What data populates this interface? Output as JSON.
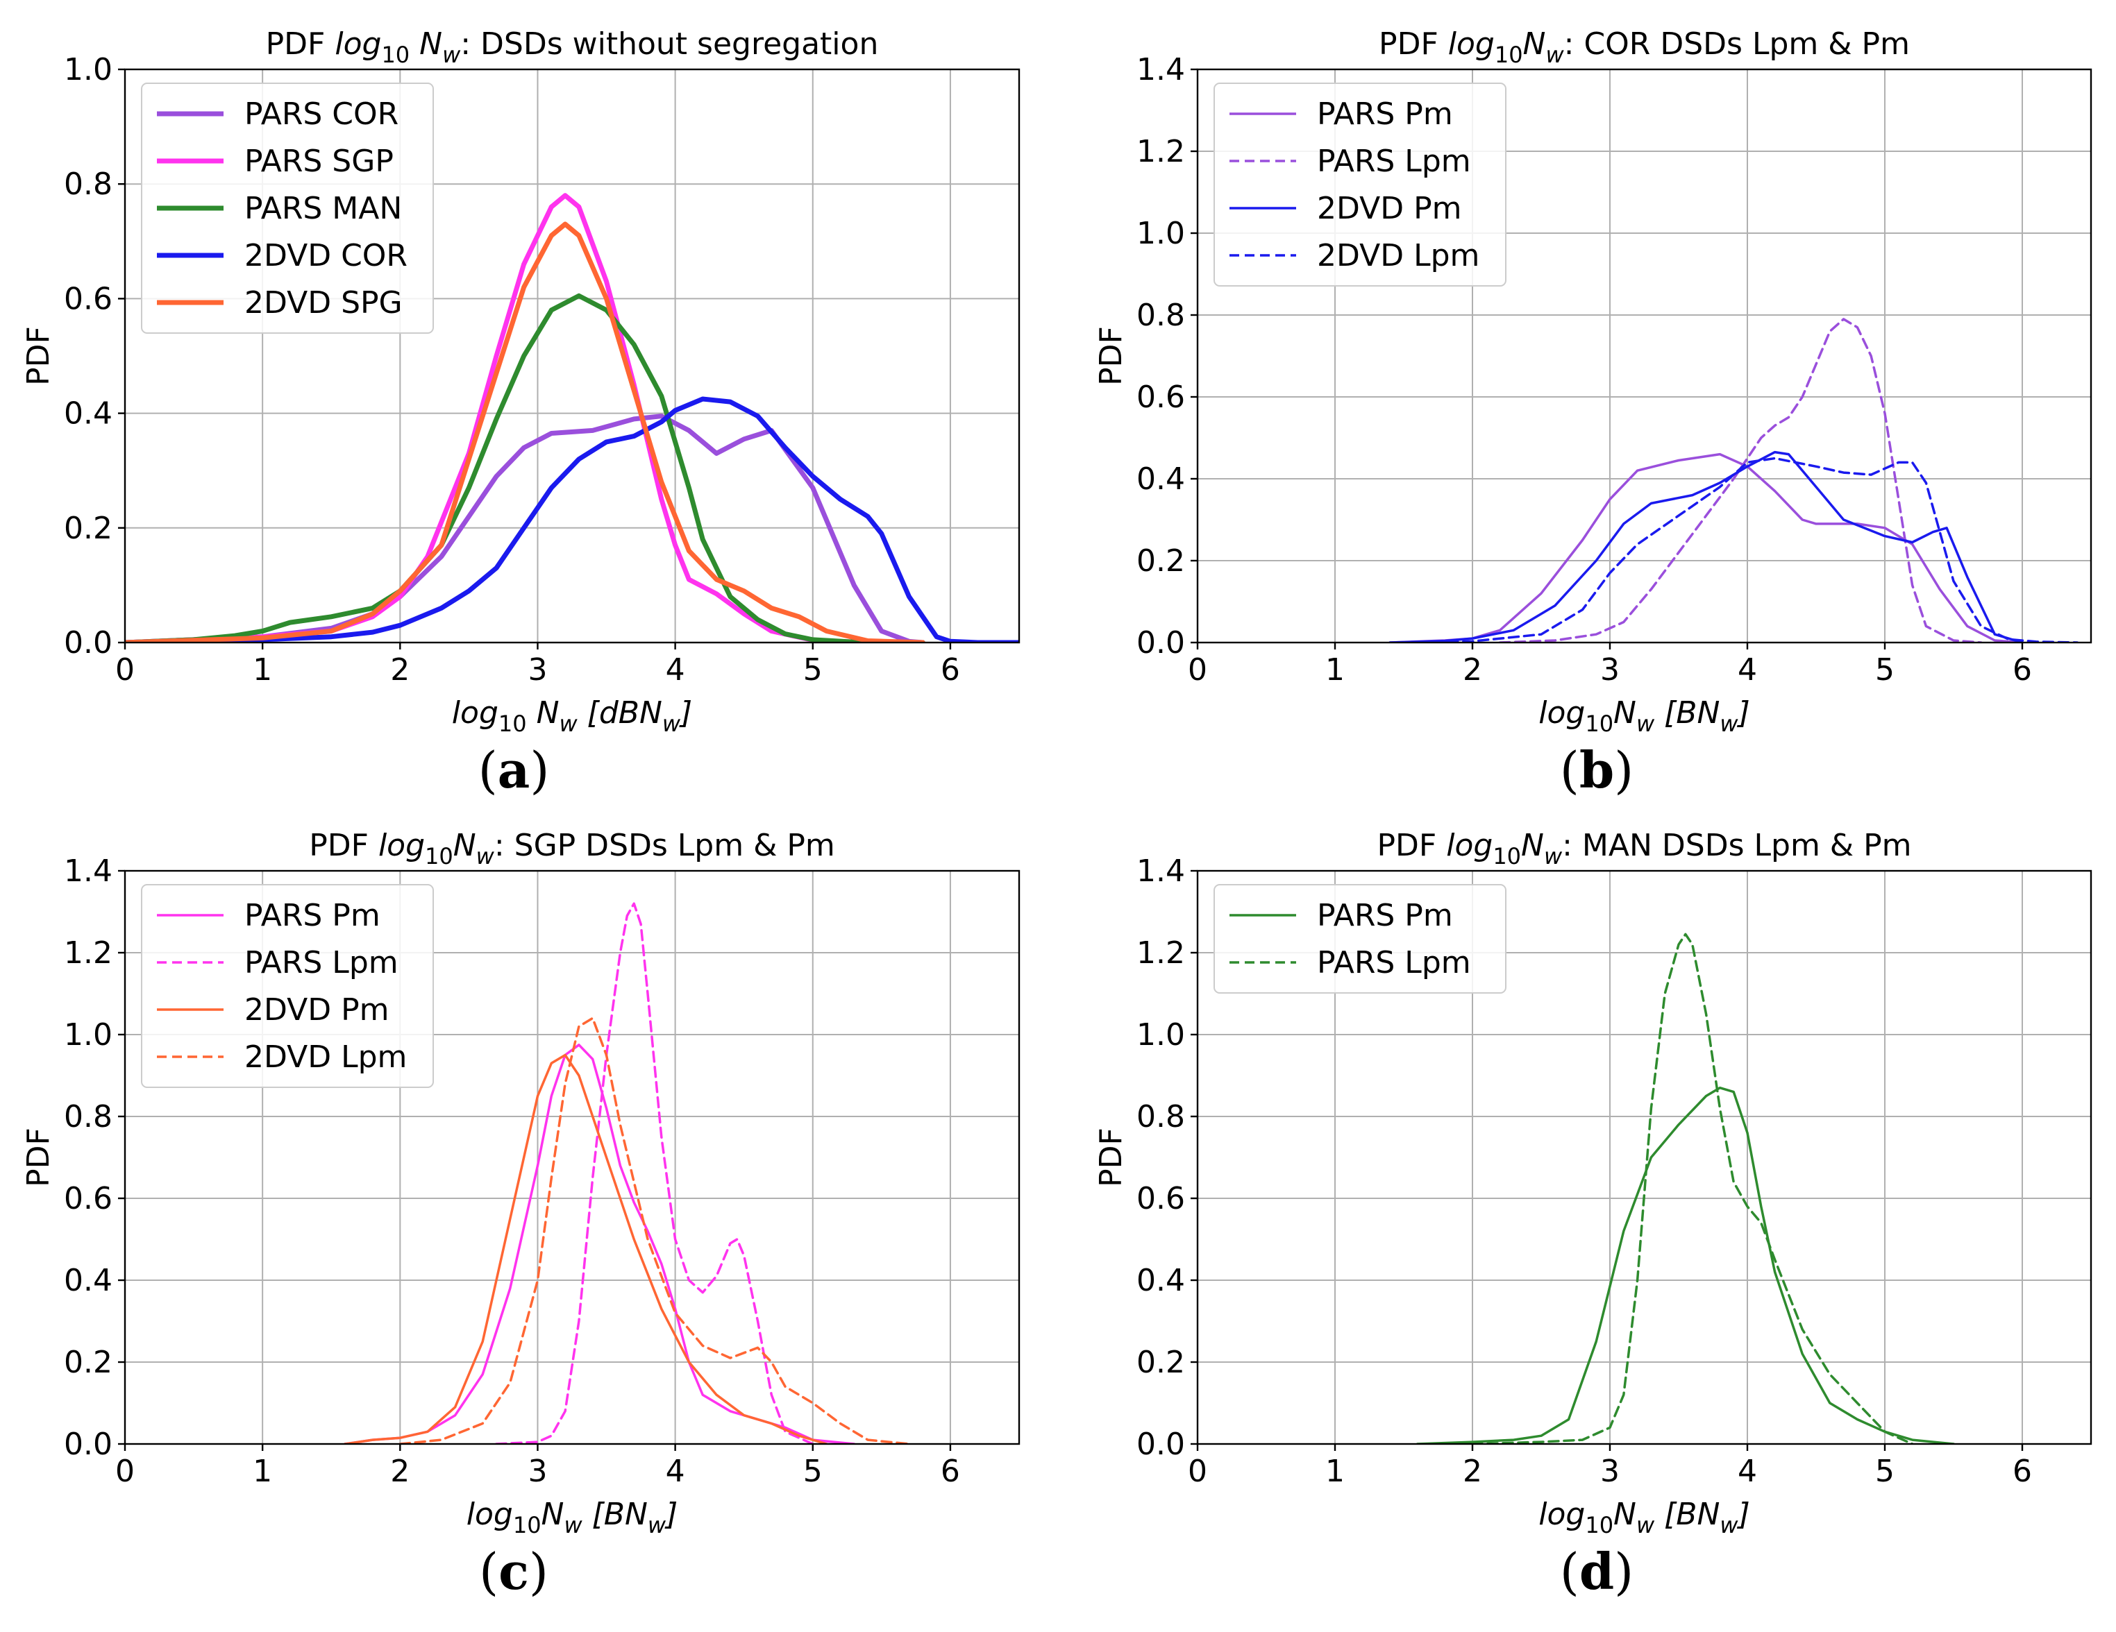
{
  "chart_data": [
    {
      "type": "line",
      "panel": "a",
      "caption": "(a)",
      "title": {
        "pre": "PDF ",
        "log": "log",
        "sub10": "10",
        "n": " N",
        "subw": "w",
        "post": ": DSDs without segregation"
      },
      "xlabel": {
        "log": "log",
        "sub10": "10",
        "n": " N",
        "subw": "w",
        "mid": " [dBN",
        "subw2": "w",
        "end": "]"
      },
      "ylabel": "PDF",
      "xlim": [
        0,
        6.5
      ],
      "ylim": [
        0,
        1.0
      ],
      "xticks": [
        "0",
        "1",
        "2",
        "3",
        "4",
        "5",
        "6"
      ],
      "yticks": [
        "0.0",
        "0.2",
        "0.4",
        "0.6",
        "0.8",
        "1.0"
      ],
      "grid": true,
      "legend_position": "top-left",
      "series": [
        {
          "name": "PARS COR",
          "color": "#9a4fdc",
          "dash": "solid",
          "width": "thick",
          "x": [
            0,
            0.5,
            1,
            1.5,
            1.8,
            2,
            2.3,
            2.5,
            2.7,
            2.9,
            3.1,
            3.4,
            3.7,
            3.9,
            4.1,
            4.3,
            4.5,
            4.7,
            5.0,
            5.3,
            5.5,
            5.7,
            5.8
          ],
          "y": [
            0,
            0.005,
            0.01,
            0.025,
            0.05,
            0.08,
            0.15,
            0.22,
            0.29,
            0.34,
            0.365,
            0.37,
            0.39,
            0.395,
            0.37,
            0.33,
            0.355,
            0.37,
            0.27,
            0.1,
            0.02,
            0.002,
            0
          ]
        },
        {
          "name": "PARS SGP",
          "color": "#ff33ee",
          "dash": "solid",
          "width": "thick",
          "x": [
            0,
            0.5,
            1,
            1.5,
            1.8,
            2,
            2.2,
            2.5,
            2.7,
            2.9,
            3.1,
            3.2,
            3.3,
            3.5,
            3.7,
            3.9,
            4.0,
            4.1,
            4.3,
            4.5,
            4.7,
            5.0,
            5.3,
            5.8
          ],
          "y": [
            0,
            0.005,
            0.01,
            0.02,
            0.045,
            0.08,
            0.15,
            0.33,
            0.5,
            0.66,
            0.76,
            0.78,
            0.76,
            0.63,
            0.45,
            0.25,
            0.17,
            0.11,
            0.085,
            0.05,
            0.02,
            0.004,
            0.001,
            0
          ]
        },
        {
          "name": "PARS MAN",
          "color": "#2e8b2e",
          "dash": "solid",
          "width": "thick",
          "x": [
            0,
            0.5,
            0.8,
            1,
            1.2,
            1.5,
            1.8,
            2.0,
            2.3,
            2.5,
            2.7,
            2.9,
            3.1,
            3.3,
            3.5,
            3.7,
            3.9,
            4.1,
            4.2,
            4.4,
            4.6,
            4.8,
            5.0,
            5.3,
            5.8
          ],
          "y": [
            0,
            0.005,
            0.012,
            0.02,
            0.035,
            0.045,
            0.06,
            0.09,
            0.17,
            0.27,
            0.39,
            0.5,
            0.58,
            0.605,
            0.58,
            0.52,
            0.43,
            0.27,
            0.18,
            0.08,
            0.04,
            0.015,
            0.005,
            0.001,
            0
          ]
        },
        {
          "name": "2DVD COR",
          "color": "#1a1aee",
          "dash": "solid",
          "width": "thick",
          "x": [
            0,
            0.5,
            1,
            1.5,
            1.8,
            2,
            2.3,
            2.5,
            2.7,
            2.9,
            3.1,
            3.3,
            3.5,
            3.7,
            3.9,
            4.0,
            4.2,
            4.4,
            4.6,
            4.8,
            5.0,
            5.2,
            5.4,
            5.5,
            5.7,
            5.9,
            6.0,
            6.2,
            6.5
          ],
          "y": [
            0,
            0.002,
            0.005,
            0.01,
            0.018,
            0.03,
            0.06,
            0.09,
            0.13,
            0.2,
            0.27,
            0.32,
            0.35,
            0.36,
            0.385,
            0.405,
            0.425,
            0.42,
            0.395,
            0.34,
            0.29,
            0.25,
            0.22,
            0.19,
            0.08,
            0.01,
            0.002,
            0,
            0
          ]
        },
        {
          "name": "2DVD SPG",
          "color": "#ff6633",
          "dash": "solid",
          "width": "thick",
          "x": [
            0,
            0.5,
            1,
            1.5,
            1.8,
            2,
            2.3,
            2.5,
            2.7,
            2.9,
            3.1,
            3.2,
            3.3,
            3.5,
            3.7,
            3.9,
            4.1,
            4.3,
            4.5,
            4.7,
            4.9,
            5.1,
            5.4,
            5.8
          ],
          "y": [
            0,
            0.004,
            0.008,
            0.02,
            0.05,
            0.09,
            0.17,
            0.32,
            0.47,
            0.62,
            0.71,
            0.73,
            0.71,
            0.6,
            0.44,
            0.28,
            0.16,
            0.11,
            0.09,
            0.06,
            0.045,
            0.02,
            0.003,
            0
          ]
        }
      ]
    },
    {
      "type": "line",
      "panel": "b",
      "caption": "(b)",
      "title": {
        "pre": "PDF ",
        "log": "log",
        "sub10": "10",
        "n": "N",
        "subw": "w",
        "post": ": COR DSDs Lpm & Pm"
      },
      "xlabel": {
        "log": "log",
        "sub10": "10",
        "n": "N",
        "subw": "w",
        "mid": " [BN",
        "subw2": "w",
        "end": "]"
      },
      "ylabel": "PDF",
      "xlim": [
        0,
        6.5
      ],
      "ylim": [
        0,
        1.4
      ],
      "xticks": [
        "0",
        "1",
        "2",
        "3",
        "4",
        "5",
        "6"
      ],
      "yticks": [
        "0.0",
        "0.2",
        "0.4",
        "0.6",
        "0.8",
        "1.0",
        "1.2",
        "1.4"
      ],
      "grid": true,
      "legend_position": "top-left",
      "series": [
        {
          "name": "PARS Pm",
          "color": "#9a4fdc",
          "dash": "solid",
          "width": "thin",
          "x": [
            1.4,
            1.8,
            2.0,
            2.2,
            2.5,
            2.8,
            3.0,
            3.2,
            3.5,
            3.8,
            4.0,
            4.2,
            4.4,
            4.5,
            4.8,
            5.0,
            5.2,
            5.4,
            5.6,
            5.8,
            6.0
          ],
          "y": [
            0,
            0.005,
            0.01,
            0.03,
            0.12,
            0.25,
            0.35,
            0.42,
            0.445,
            0.46,
            0.43,
            0.37,
            0.3,
            0.29,
            0.29,
            0.28,
            0.24,
            0.13,
            0.04,
            0.005,
            0
          ]
        },
        {
          "name": "PARS Lpm",
          "color": "#9a4fdc",
          "dash": "dashed",
          "width": "thin",
          "x": [
            2.2,
            2.6,
            2.9,
            3.1,
            3.3,
            3.5,
            3.7,
            3.9,
            4.0,
            4.1,
            4.2,
            4.3,
            4.4,
            4.5,
            4.6,
            4.7,
            4.8,
            4.9,
            5.0,
            5.1,
            5.2,
            5.3,
            5.5,
            5.7
          ],
          "y": [
            0,
            0.005,
            0.02,
            0.05,
            0.13,
            0.22,
            0.31,
            0.4,
            0.45,
            0.5,
            0.53,
            0.55,
            0.6,
            0.68,
            0.76,
            0.79,
            0.77,
            0.7,
            0.56,
            0.35,
            0.14,
            0.04,
            0.005,
            0
          ]
        },
        {
          "name": "2DVD Pm",
          "color": "#1a1aee",
          "dash": "solid",
          "width": "thin",
          "x": [
            1.4,
            1.8,
            2.0,
            2.3,
            2.6,
            2.9,
            3.1,
            3.3,
            3.6,
            3.8,
            4.0,
            4.2,
            4.3,
            4.5,
            4.7,
            5.0,
            5.2,
            5.35,
            5.45,
            5.6,
            5.8,
            6.0
          ],
          "y": [
            0,
            0.004,
            0.01,
            0.03,
            0.09,
            0.2,
            0.29,
            0.34,
            0.36,
            0.39,
            0.43,
            0.465,
            0.46,
            0.38,
            0.3,
            0.26,
            0.245,
            0.27,
            0.28,
            0.16,
            0.02,
            0
          ]
        },
        {
          "name": "2DVD Lpm",
          "color": "#1a1aee",
          "dash": "dashed",
          "width": "thin",
          "x": [
            1.6,
            2.0,
            2.5,
            2.8,
            3.0,
            3.2,
            3.5,
            3.8,
            4.0,
            4.2,
            4.5,
            4.7,
            4.9,
            5.1,
            5.2,
            5.3,
            5.4,
            5.5,
            5.7,
            5.9,
            6.1,
            6.4
          ],
          "y": [
            0,
            0.003,
            0.02,
            0.08,
            0.17,
            0.24,
            0.31,
            0.38,
            0.44,
            0.45,
            0.43,
            0.415,
            0.41,
            0.44,
            0.44,
            0.39,
            0.27,
            0.15,
            0.04,
            0.008,
            0.002,
            0
          ]
        }
      ]
    },
    {
      "type": "line",
      "panel": "c",
      "caption": "(c)",
      "title": {
        "pre": "PDF ",
        "log": "log",
        "sub10": "10",
        "n": "N",
        "subw": "w",
        "post": ": SGP DSDs Lpm & Pm"
      },
      "xlabel": {
        "log": "log",
        "sub10": "10",
        "n": "N",
        "subw": "w",
        "mid": " [BN",
        "subw2": "w",
        "end": "]"
      },
      "ylabel": "PDF",
      "xlim": [
        0,
        6.5
      ],
      "ylim": [
        0,
        1.4
      ],
      "xticks": [
        "0",
        "1",
        "2",
        "3",
        "4",
        "5",
        "6"
      ],
      "yticks": [
        "0.0",
        "0.2",
        "0.4",
        "0.6",
        "0.8",
        "1.0",
        "1.2",
        "1.4"
      ],
      "grid": true,
      "legend_position": "top-left",
      "series": [
        {
          "name": "PARS Pm",
          "color": "#ff33ee",
          "dash": "solid",
          "width": "thin",
          "x": [
            1.6,
            1.8,
            2.0,
            2.2,
            2.4,
            2.6,
            2.8,
            3.0,
            3.1,
            3.2,
            3.3,
            3.4,
            3.5,
            3.6,
            3.7,
            3.8,
            3.9,
            4.0,
            4.1,
            4.2,
            4.4,
            4.6,
            4.8,
            5.0,
            5.3
          ],
          "y": [
            0,
            0.01,
            0.015,
            0.03,
            0.07,
            0.17,
            0.38,
            0.68,
            0.85,
            0.95,
            0.975,
            0.94,
            0.82,
            0.68,
            0.59,
            0.52,
            0.44,
            0.33,
            0.2,
            0.12,
            0.08,
            0.06,
            0.04,
            0.01,
            0
          ]
        },
        {
          "name": "PARS Lpm",
          "color": "#ff33ee",
          "dash": "dashed",
          "width": "thin",
          "x": [
            2.7,
            3.0,
            3.1,
            3.2,
            3.3,
            3.4,
            3.5,
            3.6,
            3.65,
            3.7,
            3.75,
            3.8,
            3.9,
            4.0,
            4.1,
            4.2,
            4.3,
            4.4,
            4.45,
            4.5,
            4.6,
            4.7,
            4.8,
            5.0
          ],
          "y": [
            0,
            0.005,
            0.02,
            0.08,
            0.3,
            0.65,
            0.95,
            1.2,
            1.29,
            1.32,
            1.27,
            1.1,
            0.75,
            0.5,
            0.4,
            0.37,
            0.41,
            0.49,
            0.5,
            0.46,
            0.3,
            0.12,
            0.03,
            0
          ]
        },
        {
          "name": "2DVD Pm",
          "color": "#ff6633",
          "dash": "solid",
          "width": "thin",
          "x": [
            1.6,
            1.8,
            2.0,
            2.2,
            2.4,
            2.6,
            2.8,
            3.0,
            3.1,
            3.2,
            3.3,
            3.5,
            3.7,
            3.9,
            4.1,
            4.3,
            4.5,
            4.7,
            4.9,
            5.1
          ],
          "y": [
            0,
            0.01,
            0.015,
            0.03,
            0.09,
            0.25,
            0.55,
            0.85,
            0.93,
            0.95,
            0.9,
            0.7,
            0.5,
            0.33,
            0.2,
            0.12,
            0.07,
            0.05,
            0.02,
            0
          ]
        },
        {
          "name": "2DVD Lpm",
          "color": "#ff6633",
          "dash": "dashed",
          "width": "thin",
          "x": [
            2.0,
            2.3,
            2.6,
            2.8,
            3.0,
            3.1,
            3.2,
            3.3,
            3.4,
            3.5,
            3.6,
            3.8,
            4.0,
            4.2,
            4.4,
            4.6,
            4.7,
            4.8,
            5.0,
            5.2,
            5.4,
            5.7
          ],
          "y": [
            0,
            0.01,
            0.05,
            0.15,
            0.4,
            0.65,
            0.88,
            1.02,
            1.04,
            0.95,
            0.78,
            0.5,
            0.32,
            0.24,
            0.21,
            0.235,
            0.2,
            0.14,
            0.1,
            0.05,
            0.01,
            0
          ]
        }
      ]
    },
    {
      "type": "line",
      "panel": "d",
      "caption": "(d)",
      "title": {
        "pre": "PDF ",
        "log": "log",
        "sub10": "10",
        "n": "N",
        "subw": "w",
        "post": ": MAN DSDs Lpm & Pm"
      },
      "xlabel": {
        "log": "log",
        "sub10": "10",
        "n": "N",
        "subw": "w",
        "mid": " [BN",
        "subw2": "w",
        "end": "]"
      },
      "ylabel": "PDF",
      "xlim": [
        0,
        6.5
      ],
      "ylim": [
        0,
        1.4
      ],
      "xticks": [
        "0",
        "1",
        "2",
        "3",
        "4",
        "5",
        "6"
      ],
      "yticks": [
        "0.0",
        "0.2",
        "0.4",
        "0.6",
        "0.8",
        "1.0",
        "1.2",
        "1.4"
      ],
      "grid": true,
      "legend_position": "top-left",
      "series": [
        {
          "name": "PARS Pm",
          "color": "#2e8b2e",
          "dash": "solid",
          "width": "thin",
          "x": [
            1.6,
            2.0,
            2.3,
            2.5,
            2.7,
            2.9,
            3.1,
            3.3,
            3.5,
            3.7,
            3.8,
            3.9,
            4.0,
            4.1,
            4.2,
            4.4,
            4.6,
            4.8,
            5.0,
            5.2,
            5.5
          ],
          "y": [
            0,
            0.005,
            0.01,
            0.02,
            0.06,
            0.25,
            0.52,
            0.7,
            0.78,
            0.85,
            0.87,
            0.86,
            0.76,
            0.58,
            0.42,
            0.22,
            0.1,
            0.06,
            0.03,
            0.01,
            0
          ]
        },
        {
          "name": "PARS Lpm",
          "color": "#2e8b2e",
          "dash": "dashed",
          "width": "thin",
          "x": [
            2.0,
            2.5,
            2.8,
            3.0,
            3.1,
            3.2,
            3.3,
            3.4,
            3.5,
            3.55,
            3.6,
            3.7,
            3.8,
            3.9,
            4.0,
            4.1,
            4.2,
            4.4,
            4.6,
            4.8,
            5.0,
            5.2
          ],
          "y": [
            0,
            0.005,
            0.01,
            0.04,
            0.12,
            0.4,
            0.82,
            1.1,
            1.22,
            1.245,
            1.22,
            1.05,
            0.82,
            0.64,
            0.58,
            0.54,
            0.45,
            0.28,
            0.17,
            0.1,
            0.03,
            0
          ]
        }
      ]
    }
  ]
}
